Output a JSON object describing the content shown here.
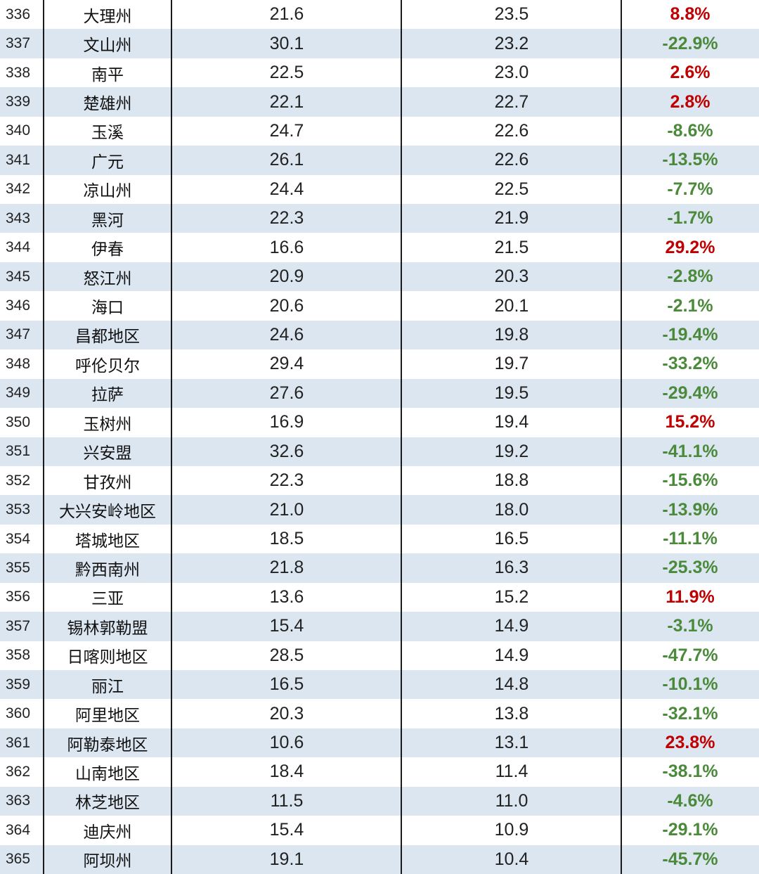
{
  "rows": [
    {
      "rank": "336",
      "city": "大理州",
      "v1": "21.6",
      "v2": "23.5",
      "pct": "8.8%",
      "dir": "pos"
    },
    {
      "rank": "337",
      "city": "文山州",
      "v1": "30.1",
      "v2": "23.2",
      "pct": "-22.9%",
      "dir": "neg"
    },
    {
      "rank": "338",
      "city": "南平",
      "v1": "22.5",
      "v2": "23.0",
      "pct": "2.6%",
      "dir": "pos"
    },
    {
      "rank": "339",
      "city": "楚雄州",
      "v1": "22.1",
      "v2": "22.7",
      "pct": "2.8%",
      "dir": "pos"
    },
    {
      "rank": "340",
      "city": "玉溪",
      "v1": "24.7",
      "v2": "22.6",
      "pct": "-8.6%",
      "dir": "neg"
    },
    {
      "rank": "341",
      "city": "广元",
      "v1": "26.1",
      "v2": "22.6",
      "pct": "-13.5%",
      "dir": "neg"
    },
    {
      "rank": "342",
      "city": "凉山州",
      "v1": "24.4",
      "v2": "22.5",
      "pct": "-7.7%",
      "dir": "neg"
    },
    {
      "rank": "343",
      "city": "黑河",
      "v1": "22.3",
      "v2": "21.9",
      "pct": "-1.7%",
      "dir": "neg"
    },
    {
      "rank": "344",
      "city": "伊春",
      "v1": "16.6",
      "v2": "21.5",
      "pct": "29.2%",
      "dir": "pos"
    },
    {
      "rank": "345",
      "city": "怒江州",
      "v1": "20.9",
      "v2": "20.3",
      "pct": "-2.8%",
      "dir": "neg"
    },
    {
      "rank": "346",
      "city": "海口",
      "v1": "20.6",
      "v2": "20.1",
      "pct": "-2.1%",
      "dir": "neg"
    },
    {
      "rank": "347",
      "city": "昌都地区",
      "v1": "24.6",
      "v2": "19.8",
      "pct": "-19.4%",
      "dir": "neg"
    },
    {
      "rank": "348",
      "city": "呼伦贝尔",
      "v1": "29.4",
      "v2": "19.7",
      "pct": "-33.2%",
      "dir": "neg"
    },
    {
      "rank": "349",
      "city": "拉萨",
      "v1": "27.6",
      "v2": "19.5",
      "pct": "-29.4%",
      "dir": "neg"
    },
    {
      "rank": "350",
      "city": "玉树州",
      "v1": "16.9",
      "v2": "19.4",
      "pct": "15.2%",
      "dir": "pos"
    },
    {
      "rank": "351",
      "city": "兴安盟",
      "v1": "32.6",
      "v2": "19.2",
      "pct": "-41.1%",
      "dir": "neg"
    },
    {
      "rank": "352",
      "city": "甘孜州",
      "v1": "22.3",
      "v2": "18.8",
      "pct": "-15.6%",
      "dir": "neg"
    },
    {
      "rank": "353",
      "city": "大兴安岭地区",
      "v1": "21.0",
      "v2": "18.0",
      "pct": "-13.9%",
      "dir": "neg"
    },
    {
      "rank": "354",
      "city": "塔城地区",
      "v1": "18.5",
      "v2": "16.5",
      "pct": "-11.1%",
      "dir": "neg"
    },
    {
      "rank": "355",
      "city": "黔西南州",
      "v1": "21.8",
      "v2": "16.3",
      "pct": "-25.3%",
      "dir": "neg"
    },
    {
      "rank": "356",
      "city": "三亚",
      "v1": "13.6",
      "v2": "15.2",
      "pct": "11.9%",
      "dir": "pos"
    },
    {
      "rank": "357",
      "city": "锡林郭勒盟",
      "v1": "15.4",
      "v2": "14.9",
      "pct": "-3.1%",
      "dir": "neg"
    },
    {
      "rank": "358",
      "city": "日喀则地区",
      "v1": "28.5",
      "v2": "14.9",
      "pct": "-47.7%",
      "dir": "neg"
    },
    {
      "rank": "359",
      "city": "丽江",
      "v1": "16.5",
      "v2": "14.8",
      "pct": "-10.1%",
      "dir": "neg"
    },
    {
      "rank": "360",
      "city": "阿里地区",
      "v1": "20.3",
      "v2": "13.8",
      "pct": "-32.1%",
      "dir": "neg"
    },
    {
      "rank": "361",
      "city": "阿勒泰地区",
      "v1": "10.6",
      "v2": "13.1",
      "pct": "23.8%",
      "dir": "pos"
    },
    {
      "rank": "362",
      "city": "山南地区",
      "v1": "18.4",
      "v2": "11.4",
      "pct": "-38.1%",
      "dir": "neg"
    },
    {
      "rank": "363",
      "city": "林芝地区",
      "v1": "11.5",
      "v2": "11.0",
      "pct": "-4.6%",
      "dir": "neg"
    },
    {
      "rank": "364",
      "city": "迪庆州",
      "v1": "15.4",
      "v2": "10.9",
      "pct": "-29.1%",
      "dir": "neg"
    },
    {
      "rank": "365",
      "city": "阿坝州",
      "v1": "19.1",
      "v2": "10.4",
      "pct": "-45.7%",
      "dir": "neg"
    }
  ],
  "colors": {
    "positive": "#c00000",
    "negative": "#4a8a3a",
    "stripe": "#dce6f1"
  }
}
